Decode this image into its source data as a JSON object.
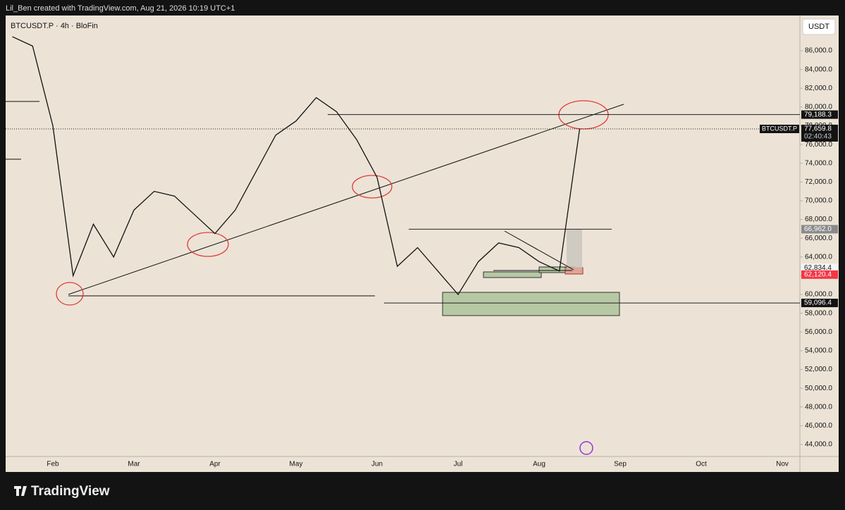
{
  "header": {
    "credit": "Lil_Ben created with TradingView.com, Aug 21, 2026 10:19 UTC+1"
  },
  "footer": {
    "brand": "TradingView"
  },
  "chart_data": {
    "type": "line",
    "title": "BTCUSDT.P · 4h · BloFin",
    "currency": "USDT",
    "color": "#111111",
    "categories": [
      null,
      null,
      "Feb",
      null,
      null,
      null,
      "Mar",
      null,
      null,
      null,
      "Apr",
      null,
      null,
      null,
      "May",
      null,
      null,
      null,
      "Jun",
      null,
      null,
      null,
      "Jul",
      null,
      null,
      null,
      "Aug",
      null,
      null,
      null,
      "Sep",
      null,
      null,
      null,
      "Oct",
      null,
      null,
      null,
      "Nov",
      null,
      null
    ],
    "values": [
      87500,
      86500,
      78000,
      62000,
      67500,
      64000,
      69000,
      71000,
      70500,
      68500,
      66500,
      69000,
      73000,
      77000,
      78500,
      81000,
      79500,
      76500,
      72500,
      63000,
      65000,
      62500,
      60000,
      63500,
      65500,
      65000,
      63500,
      62500,
      77659.8,
      null,
      null,
      null,
      null,
      null,
      null,
      null,
      null,
      null,
      null,
      null,
      null
    ],
    "ylim": [
      42720,
      89760
    ],
    "yticks": [
      {
        "value": 44000,
        "label": "44,000.0"
      },
      {
        "value": 46000,
        "label": "46,000.0"
      },
      {
        "value": 48000,
        "label": "48,000.0"
      },
      {
        "value": 50000,
        "label": "50,000.0"
      },
      {
        "value": 52000,
        "label": "52,000.0"
      },
      {
        "value": 54000,
        "label": "54,000.0"
      },
      {
        "value": 56000,
        "label": "56,000.0"
      },
      {
        "value": 58000,
        "label": "58,000.0"
      },
      {
        "value": 60000,
        "label": "60,000.0"
      },
      {
        "value": 62000,
        "label": "62,000.0"
      },
      {
        "value": 64000,
        "label": "64,000.0"
      },
      {
        "value": 66000,
        "label": "66,000.0"
      },
      {
        "value": 68000,
        "label": "68,000.0"
      },
      {
        "value": 70000,
        "label": "70,000.0"
      },
      {
        "value": 72000,
        "label": "72,000.0"
      },
      {
        "value": 74000,
        "label": "74,000.0"
      },
      {
        "value": 76000,
        "label": "76,000.0"
      },
      {
        "value": 78000,
        "label": "78,000.0"
      },
      {
        "value": 80000,
        "label": "80,000.0"
      },
      {
        "value": 82000,
        "label": "82,000.0"
      },
      {
        "value": 84000,
        "label": "84,000.0"
      },
      {
        "value": 86000,
        "label": "86,000.0"
      }
    ],
    "levels": [
      {
        "value": 79188.3,
        "label": "79,188.3",
        "color": "#131313"
      },
      {
        "value": 77659.8,
        "label": "77,659.8",
        "color": "#131313",
        "tag": "BTCUSDT.P",
        "countdown": "02:40:43"
      },
      {
        "value": 66962.0,
        "label": "66,962.0",
        "color": "#8a8a8a"
      },
      {
        "value": 62834.4,
        "label": "62,834.4",
        "color": "#f5f5f5"
      },
      {
        "value": 62120.4,
        "label": "62,120.4",
        "color": "#f23645"
      },
      {
        "value": 59096.4,
        "label": "59,096.4",
        "color": "#131313"
      }
    ]
  }
}
